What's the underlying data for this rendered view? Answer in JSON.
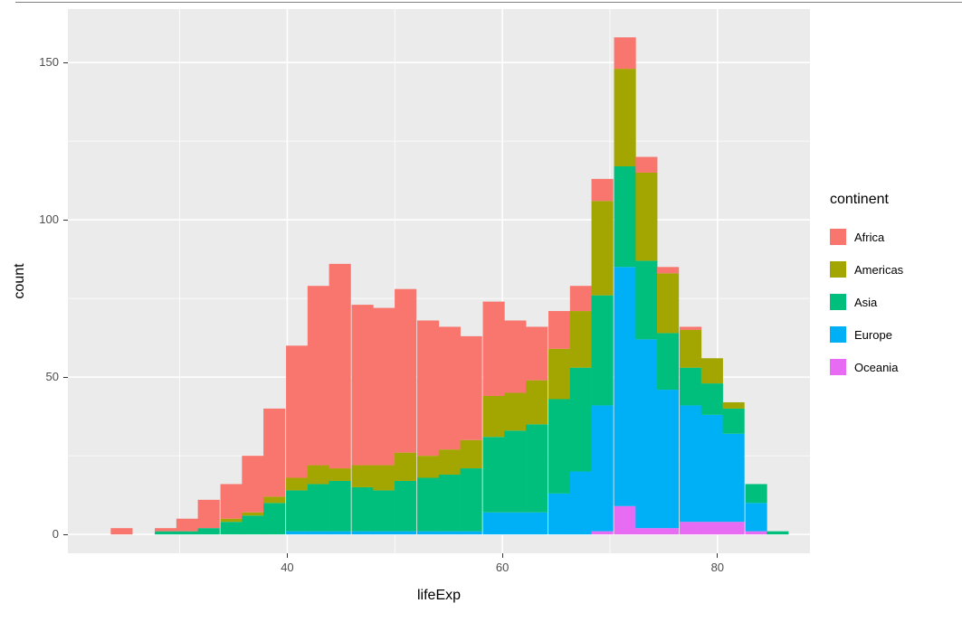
{
  "figure": {
    "top_border": true
  },
  "chart_data": {
    "type": "bar",
    "subtype": "stacked-histogram",
    "title": "",
    "xlabel": "lifeExp",
    "ylabel": "count",
    "legend_title": "continent",
    "legend_position": "right",
    "grid": "on",
    "panel_background": "#EBEBEB",
    "grid_color": "#FFFFFF",
    "tick_label_color": "#4D4D4D",
    "xlim": [
      19.6,
      88.6
    ],
    "ylim": [
      -6,
      167
    ],
    "x_ticks": [
      40,
      60,
      80
    ],
    "y_ticks": [
      0,
      50,
      100,
      150
    ],
    "x_minor_ticks": [
      30,
      50,
      70
    ],
    "y_minor_ticks": [
      25,
      75,
      125
    ],
    "bin_width": 2.03,
    "bin_centers": [
      24.6,
      26.6,
      28.7,
      30.7,
      32.7,
      34.8,
      36.8,
      38.8,
      40.9,
      42.9,
      44.9,
      47.0,
      49.0,
      51.0,
      53.1,
      55.1,
      57.1,
      59.2,
      61.2,
      63.2,
      65.3,
      67.3,
      69.3,
      71.4,
      73.4,
      75.4,
      77.5,
      79.5,
      81.5,
      83.6,
      85.6
    ],
    "stack_order_bottom_to_top": [
      "Oceania",
      "Europe",
      "Asia",
      "Americas",
      "Africa"
    ],
    "series": [
      {
        "name": "Africa",
        "color": "#F8766D",
        "values": [
          2,
          0,
          1,
          4,
          9,
          11,
          18,
          28,
          42,
          57,
          65,
          51,
          50,
          52,
          43,
          39,
          33,
          30,
          23,
          17,
          12,
          8,
          7,
          10,
          5,
          2,
          1,
          0,
          0,
          0,
          0
        ]
      },
      {
        "name": "Americas",
        "color": "#A3A500",
        "values": [
          0,
          0,
          0,
          0,
          0,
          1,
          1,
          2,
          4,
          6,
          4,
          7,
          8,
          9,
          7,
          8,
          9,
          13,
          12,
          14,
          16,
          18,
          30,
          31,
          28,
          19,
          12,
          8,
          2,
          0,
          0
        ]
      },
      {
        "name": "Asia",
        "color": "#00BF7D",
        "values": [
          0,
          0,
          1,
          1,
          2,
          4,
          6,
          10,
          13,
          15,
          16,
          14,
          13,
          16,
          17,
          18,
          20,
          24,
          26,
          28,
          30,
          33,
          35,
          32,
          25,
          18,
          12,
          10,
          8,
          6,
          1
        ]
      },
      {
        "name": "Europe",
        "color": "#00B0F6",
        "values": [
          0,
          0,
          0,
          0,
          0,
          0,
          0,
          0,
          1,
          1,
          1,
          1,
          1,
          1,
          1,
          1,
          1,
          7,
          7,
          7,
          13,
          20,
          40,
          76,
          60,
          44,
          37,
          34,
          28,
          9,
          0
        ]
      },
      {
        "name": "Oceania",
        "color": "#E76BF3",
        "values": [
          0,
          0,
          0,
          0,
          0,
          0,
          0,
          0,
          0,
          0,
          0,
          0,
          0,
          0,
          0,
          0,
          0,
          0,
          0,
          0,
          0,
          0,
          1,
          9,
          2,
          2,
          4,
          4,
          4,
          1,
          0
        ]
      }
    ],
    "totals_peak": 158
  }
}
